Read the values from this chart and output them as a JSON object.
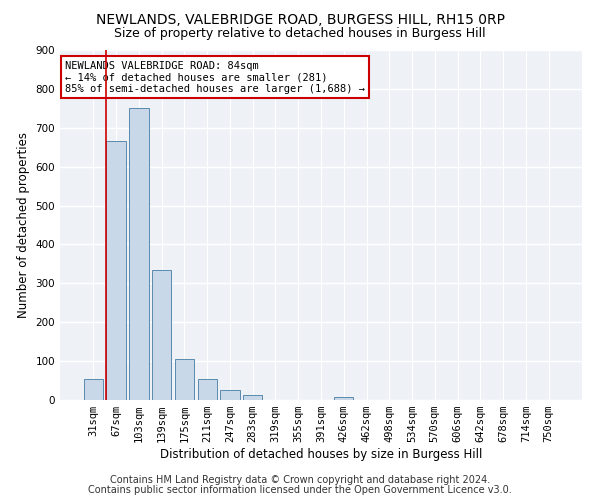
{
  "title1": "NEWLANDS, VALEBRIDGE ROAD, BURGESS HILL, RH15 0RP",
  "title2": "Size of property relative to detached houses in Burgess Hill",
  "xlabel": "Distribution of detached houses by size in Burgess Hill",
  "ylabel": "Number of detached properties",
  "footnote1": "Contains HM Land Registry data © Crown copyright and database right 2024.",
  "footnote2": "Contains public sector information licensed under the Open Government Licence v3.0.",
  "categories": [
    "31sqm",
    "67sqm",
    "103sqm",
    "139sqm",
    "175sqm",
    "211sqm",
    "247sqm",
    "283sqm",
    "319sqm",
    "355sqm",
    "391sqm",
    "426sqm",
    "462sqm",
    "498sqm",
    "534sqm",
    "570sqm",
    "606sqm",
    "642sqm",
    "678sqm",
    "714sqm",
    "750sqm"
  ],
  "values": [
    55,
    665,
    750,
    335,
    105,
    55,
    25,
    13,
    0,
    0,
    0,
    8,
    0,
    0,
    0,
    0,
    0,
    0,
    0,
    0,
    0
  ],
  "bar_color": "#c8d8e8",
  "bar_edge_color": "#5a8ab0",
  "vline_color": "#cc0000",
  "annotation_text": "NEWLANDS VALEBRIDGE ROAD: 84sqm\n← 14% of detached houses are smaller (281)\n85% of semi-detached houses are larger (1,688) →",
  "annotation_box_color": "#ffffff",
  "annotation_box_edge": "#cc0000",
  "ylim": [
    0,
    900
  ],
  "yticks": [
    0,
    100,
    200,
    300,
    400,
    500,
    600,
    700,
    800,
    900
  ],
  "background_color": "#eef2f7",
  "grid_color": "#ffffff",
  "title1_fontsize": 10,
  "title2_fontsize": 9,
  "xlabel_fontsize": 8.5,
  "ylabel_fontsize": 8.5,
  "tick_fontsize": 7.5,
  "annotation_fontsize": 7.5,
  "footnote_fontsize": 7.0
}
